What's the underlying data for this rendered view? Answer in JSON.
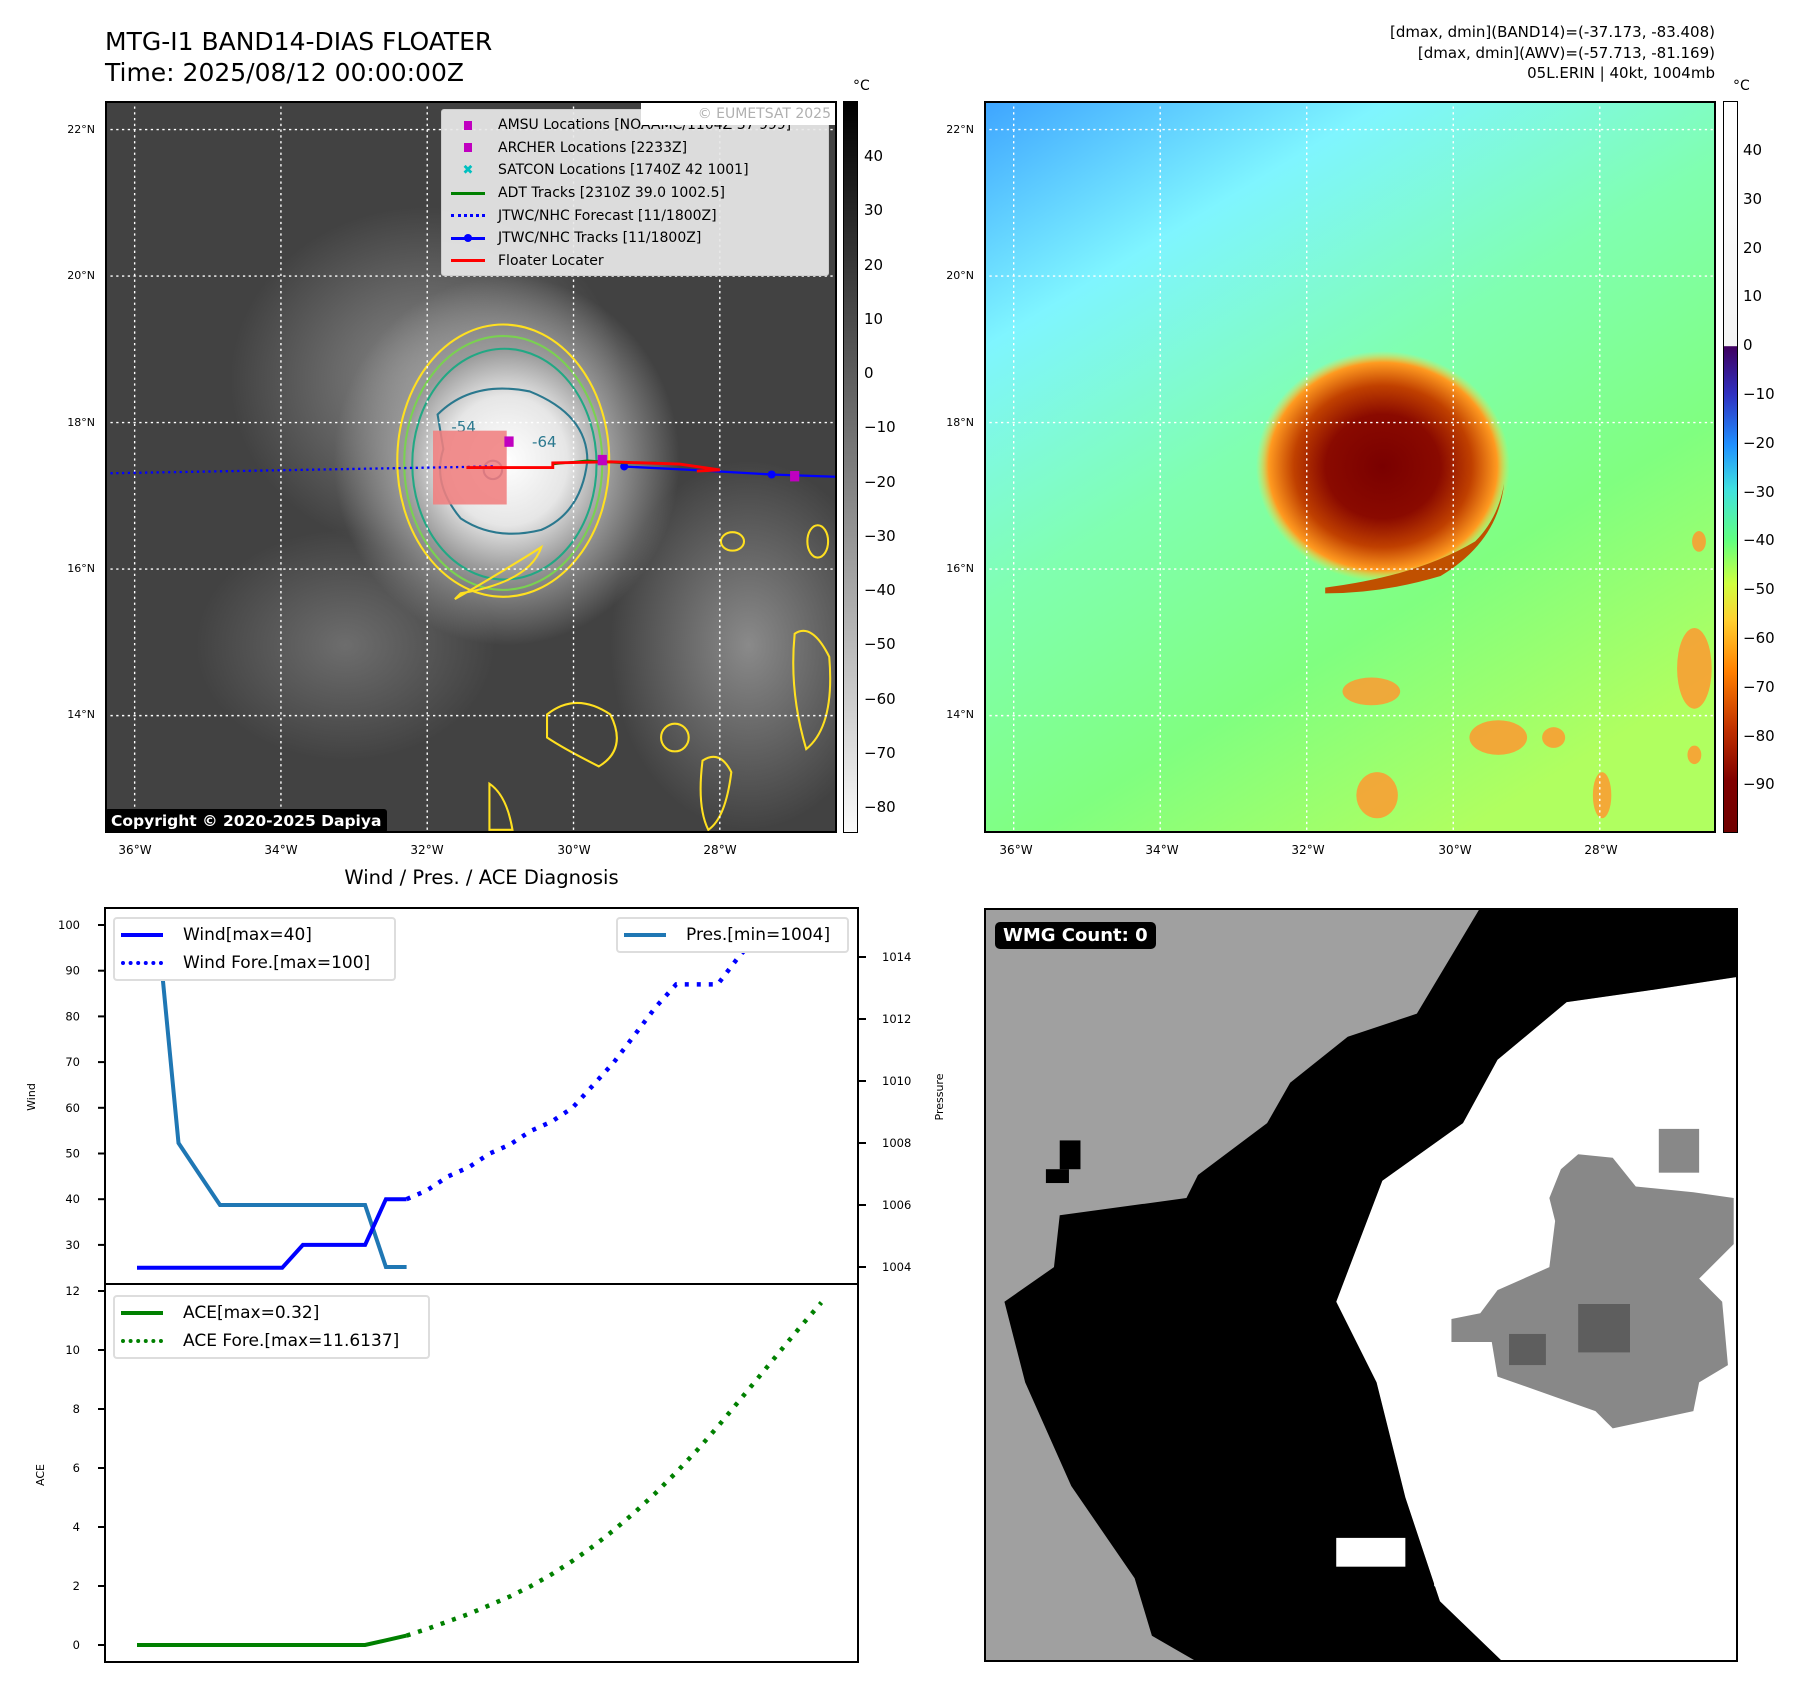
{
  "header": {
    "title_line1": "MTG-I1 BAND14-DIAS FLOATER",
    "title_line2": "Time: 2025/08/12 00:00:00Z",
    "info_line1": "[dmax, dmin](BAND14)=(-37.173, -83.408)",
    "info_line2": "[dmax, dmin](AWV)=(-57.713, -81.169)",
    "info_line3": "05L.ERIN | 40kt, 1004mb"
  },
  "map": {
    "lat_labels": [
      "22°N",
      "20°N",
      "18°N",
      "16°N",
      "14°N"
    ],
    "lon_labels": [
      "36°W",
      "34°W",
      "32°W",
      "30°W",
      "28°W"
    ],
    "contour_labels": [
      "-54",
      "-64"
    ],
    "watermark": "© EUMETSAT 2025",
    "copyright": "Copyright © 2020-2025 Dapiya",
    "legend": [
      {
        "label": "AMSU Locations [NOAAMC/1104Z 37 999]",
        "symbol": "square",
        "color": "#c000c0"
      },
      {
        "label": "ARCHER Locations [2233Z]",
        "symbol": "square",
        "color": "#c000c0"
      },
      {
        "label": "SATCON Locations [1740Z 42 1001]",
        "symbol": "x",
        "color": "#00c0c0"
      },
      {
        "label": "ADT Tracks [2310Z 39.0 1002.5]",
        "symbol": "line",
        "color": "#008000"
      },
      {
        "label": "JTWC/NHC Forecast [11/1800Z]",
        "symbol": "dotted",
        "color": "#0000ff"
      },
      {
        "label": "JTWC/NHC Tracks [11/1800Z]",
        "symbol": "line-dot",
        "color": "#0000ff"
      },
      {
        "label": "Floater Locater",
        "symbol": "line",
        "color": "#ff0000"
      }
    ],
    "left_colorbar": {
      "unit": "°C",
      "ticks": [
        "40",
        "30",
        "20",
        "10",
        "0",
        "−10",
        "−20",
        "−30",
        "−40",
        "−50",
        "−60",
        "−70",
        "−80"
      ]
    },
    "right_colorbar": {
      "unit": "°C",
      "ticks": [
        "40",
        "30",
        "20",
        "10",
        "0",
        "−10",
        "−20",
        "−30",
        "−40",
        "−50",
        "−60",
        "−70",
        "−80",
        "−90"
      ]
    }
  },
  "chart_data": [
    {
      "type": "line",
      "title": "Wind / Pres. / ACE Diagnosis",
      "ylabel": "Wind",
      "ylabel_right": "Pressure",
      "ylim": [
        22,
        104
      ],
      "ylim_right": [
        1003.4,
        1015.6
      ],
      "yticks": [
        100,
        90,
        80,
        70,
        60,
        50,
        40,
        30
      ],
      "yticks_right": [
        1014,
        1012,
        1010,
        1008,
        1006,
        1004
      ],
      "x_steps": 33,
      "series": [
        {
          "name": "Wind[max=40]",
          "axis": "left",
          "style": "solid",
          "color": "#0000ff",
          "x": [
            0,
            1,
            2,
            3,
            4,
            5,
            6,
            7,
            8,
            9,
            10,
            11,
            12,
            13
          ],
          "values": [
            25,
            25,
            25,
            25,
            25,
            25,
            25,
            25,
            30,
            30,
            30,
            30,
            40,
            40
          ]
        },
        {
          "name": "Wind Fore.[max=100]",
          "axis": "left",
          "style": "dotted",
          "color": "#0000ff",
          "x": [
            13,
            14,
            15,
            16,
            17,
            18,
            19,
            20,
            21,
            22,
            23,
            24,
            25,
            26,
            27,
            28,
            29,
            30,
            31
          ],
          "values": [
            40,
            42,
            45,
            47,
            50,
            52,
            55,
            57,
            60,
            65,
            70,
            76,
            82,
            87,
            87,
            87,
            93,
            98,
            100
          ]
        },
        {
          "name": "Pres.[min=1004]",
          "axis": "right",
          "style": "solid",
          "color": "#1f77b4",
          "x": [
            0,
            1,
            2,
            3,
            4,
            5,
            6,
            7,
            8,
            9,
            10,
            11,
            12,
            13
          ],
          "values": [
            1015,
            1015,
            1008,
            1007,
            1006,
            1006,
            1006,
            1006,
            1006,
            1006,
            1006,
            1006,
            1004,
            1004
          ]
        }
      ]
    },
    {
      "type": "line",
      "ylabel": "ACE",
      "ylim": [
        -0.6,
        12.2
      ],
      "yticks": [
        12,
        10,
        8,
        6,
        4,
        2,
        0
      ],
      "x_steps": 33,
      "series": [
        {
          "name": "ACE[max=0.32]",
          "style": "solid",
          "color": "#008000",
          "x": [
            0,
            1,
            2,
            3,
            4,
            5,
            6,
            7,
            8,
            9,
            10,
            11,
            12,
            13
          ],
          "values": [
            0,
            0,
            0,
            0,
            0,
            0,
            0,
            0,
            0,
            0,
            0,
            0,
            0.16,
            0.32
          ]
        },
        {
          "name": "ACE Fore.[max=11.6137]",
          "style": "dotted",
          "color": "#008000",
          "x": [
            13,
            14,
            15,
            16,
            17,
            18,
            19,
            20,
            21,
            22,
            23,
            24,
            25,
            26,
            27,
            28,
            29,
            30,
            31,
            32,
            33
          ],
          "values": [
            0.32,
            0.55,
            0.8,
            1.05,
            1.35,
            1.65,
            2.0,
            2.4,
            2.85,
            3.35,
            3.9,
            4.5,
            5.15,
            5.85,
            6.6,
            7.4,
            8.25,
            9.1,
            9.95,
            10.8,
            11.61
          ]
        }
      ]
    }
  ],
  "wmg": {
    "label": "WMG Count: 0"
  }
}
